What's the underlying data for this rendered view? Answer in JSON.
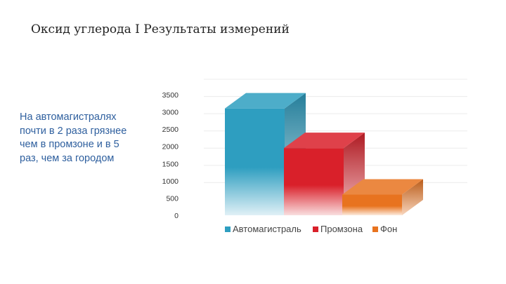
{
  "slide": {
    "title": "Оксид углерода I Результаты измерений",
    "note": "На автомагистралях почти в 2 раза грязнее чем в промзоне и в 5 раз, чем за городом"
  },
  "chart_data": {
    "type": "bar",
    "categories": [
      ""
    ],
    "series": [
      {
        "name": "Автомагистраль",
        "values": [
          3100
        ],
        "color": "#2e9ec0"
      },
      {
        "name": "Промзона",
        "values": [
          1950
        ],
        "color": "#d9202a"
      },
      {
        "name": "Фон",
        "values": [
          600
        ],
        "color": "#e8731f"
      }
    ],
    "ylim": [
      0,
      3500
    ],
    "yticks": [
      0,
      500,
      1000,
      1500,
      2000,
      2500,
      3000,
      3500
    ],
    "grid": true,
    "legend": "bottom",
    "three_d": true
  }
}
